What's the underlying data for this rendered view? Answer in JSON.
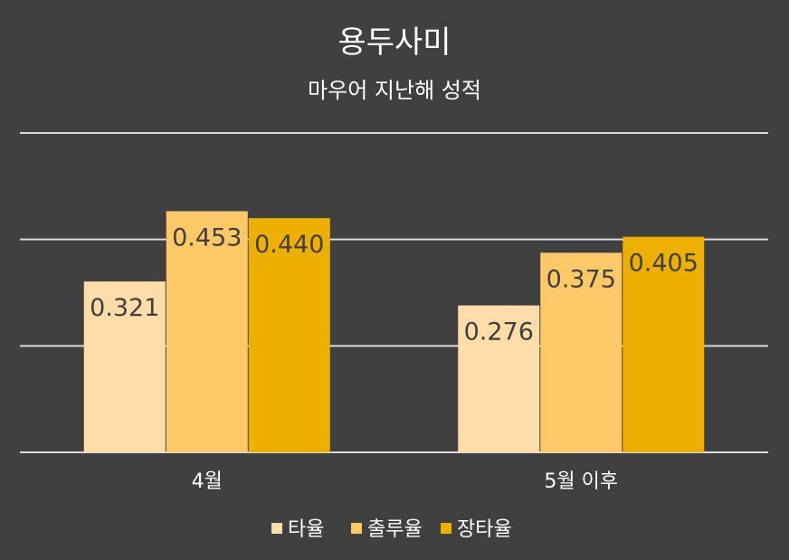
{
  "chart_data": {
    "type": "bar",
    "title": "용두사미",
    "subtitle": "마우어 지난해 성적",
    "categories": [
      "4월",
      "5월 이후"
    ],
    "series": [
      {
        "name": "타율",
        "values": [
          0.321,
          0.276
        ],
        "labels": [
          "0.321",
          "0.276"
        ],
        "color": "#FFDDA8"
      },
      {
        "name": "출루율",
        "values": [
          0.453,
          0.375
        ],
        "labels": [
          "0.453",
          "0.375"
        ],
        "color": "#FDC867"
      },
      {
        "name": "장타율",
        "values": [
          0.44,
          0.405
        ],
        "labels": [
          "0.440",
          "0.405"
        ],
        "color": "#EEB000"
      }
    ],
    "ylim": [
      0,
      0.6
    ],
    "grid": true,
    "legend": "bottom"
  }
}
